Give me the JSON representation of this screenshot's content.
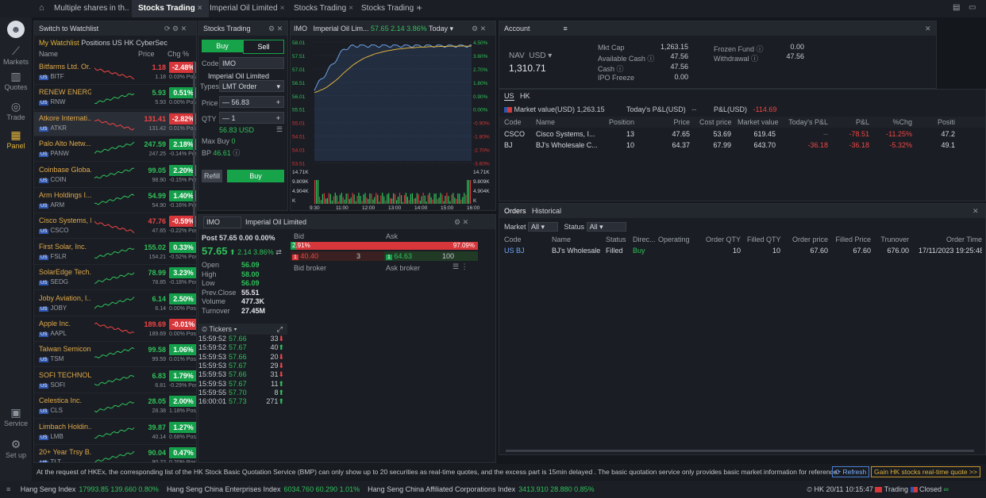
{
  "tabs": [
    {
      "label": "Multiple shares in th..",
      "close": "×"
    },
    {
      "label": "Stocks Trading",
      "close": "×"
    },
    {
      "label": "Imperial Oil Limited",
      "close": "×"
    },
    {
      "label": "Stocks Trading",
      "close": "×"
    },
    {
      "label": "Stocks Trading",
      "close": "×"
    }
  ],
  "add_tab": "+",
  "sidebar": {
    "items": [
      {
        "label": "Markets"
      },
      {
        "label": "Quotes"
      },
      {
        "label": "Trade"
      },
      {
        "label": "Panel"
      },
      {
        "label": "Service"
      },
      {
        "label": "Set up"
      }
    ]
  },
  "watchlist": {
    "title": "Switch to Watchlist",
    "filters": [
      "My Watchlist",
      "Positions",
      "US",
      "HK",
      "CyberSec"
    ],
    "headers": {
      "name": "Name",
      "price": "Price",
      "chg": "Chg %"
    },
    "rows": [
      {
        "name": "Bitfarms Ltd. Or...",
        "sym": "BITF",
        "price": "1.18",
        "chg": "-2.48%",
        "price2": "1.18",
        "post": "0.03% Post",
        "dir": "down"
      },
      {
        "name": "RENEW ENERG...",
        "sym": "RNW",
        "price": "5.93",
        "chg": "0.51%",
        "price2": "5.93",
        "post": "0.00% Post",
        "dir": "up"
      },
      {
        "name": "Atkore Internati...",
        "sym": "ATKR",
        "price": "131.41",
        "chg": "-2.82%",
        "price2": "131.42",
        "post": "0.01% Post",
        "dir": "down"
      },
      {
        "name": "Palo Alto Netw...",
        "sym": "PANW",
        "price": "247.59",
        "chg": "2.18%",
        "price2": "247.25",
        "post": "-0.14% Post",
        "dir": "up"
      },
      {
        "name": "Coinbase Globa...",
        "sym": "COIN",
        "price": "99.05",
        "chg": "2.20%",
        "price2": "98.90",
        "post": "-0.15% Post",
        "dir": "up"
      },
      {
        "name": "Arm Holdings I...",
        "sym": "ARM",
        "price": "54.99",
        "chg": "1.40%",
        "price2": "54.90",
        "post": "-0.16% Post",
        "dir": "up"
      },
      {
        "name": "Cisco Systems, I...",
        "sym": "CSCO",
        "price": "47.76",
        "chg": "-0.59%",
        "price2": "47.65",
        "post": "-0.22% Post",
        "dir": "down"
      },
      {
        "name": "First Solar, Inc.",
        "sym": "FSLR",
        "price": "155.02",
        "chg": "0.33%",
        "price2": "154.21",
        "post": "-0.52% Post",
        "dir": "up"
      },
      {
        "name": "SolarEdge Tech...",
        "sym": "SEDG",
        "price": "78.99",
        "chg": "3.23%",
        "price2": "78.85",
        "post": "-0.18% Post",
        "dir": "up"
      },
      {
        "name": "Joby Aviation, I...",
        "sym": "JOBY",
        "price": "6.14",
        "chg": "2.50%",
        "price2": "6.14",
        "post": "0.00% Post",
        "dir": "up"
      },
      {
        "name": "Apple Inc.",
        "sym": "AAPL",
        "price": "189.69",
        "chg": "-0.01%",
        "price2": "189.69",
        "post": "0.00% Post",
        "dir": "down"
      },
      {
        "name": "Taiwan Semicon...",
        "sym": "TSM",
        "price": "99.58",
        "chg": "1.06%",
        "price2": "99.59",
        "post": "0.01% Post",
        "dir": "up"
      },
      {
        "name": "SOFI TECHNOL...",
        "sym": "SOFI",
        "price": "6.83",
        "chg": "1.79%",
        "price2": "6.81",
        "post": "-0.29% Post",
        "dir": "up"
      },
      {
        "name": "Celestica Inc.",
        "sym": "CLS",
        "price": "28.05",
        "chg": "2.00%",
        "price2": "28.38",
        "post": "1.18% Post",
        "dir": "up"
      },
      {
        "name": "Limbach Holdin...",
        "sym": "LMB",
        "price": "39.87",
        "chg": "1.27%",
        "price2": "40.14",
        "post": "0.68% Post",
        "dir": "up"
      },
      {
        "name": "20+ Year Trsy B...",
        "sym": "TLT",
        "price": "90.04",
        "chg": "0.47%",
        "price2": "90.22",
        "post": "0.20% Post",
        "dir": "up"
      }
    ]
  },
  "trade": {
    "title": "Stocks Trading",
    "buy": "Buy",
    "sell": "Sell",
    "code_label": "Code",
    "code": "IMO",
    "company": "Imperial Oil Limited",
    "type_label": "Types",
    "type": "LMT Order",
    "price_label": "Price",
    "price": "56.83",
    "qty_label": "QTY",
    "qty": "1",
    "amount": "56.83 USD",
    "maxbuy_label": "Max Buy",
    "maxbuy": "0",
    "bp_label": "BP",
    "bp": "46.61",
    "refill": "Refill",
    "buy_btn": "Buy"
  },
  "chart": {
    "code": "IMO",
    "name": "Imperial Oil Lim...",
    "price": "57.65",
    "chg": "2.14",
    "pct": "3.86%",
    "period": "Today",
    "left_ticks": [
      "58.01",
      "57.51",
      "57.01",
      "56.51",
      "56.01",
      "55.51",
      "55.01",
      "54.51",
      "54.01",
      "53.51"
    ],
    "right_ticks": [
      "4.50%",
      "3.60%",
      "2.70%",
      "1.80%",
      "0.90%",
      "0.00%",
      "-0.90%",
      "-1.80%",
      "-2.70%",
      "-3.60%"
    ],
    "vol_left": [
      "14.71K",
      "9.809K",
      "4.904K",
      "K"
    ],
    "vol_right": [
      "14.71K",
      "9.809K",
      "4.904K",
      "K"
    ],
    "times": [
      "9:30",
      "11:00",
      "12:00",
      "13:00",
      "14:00",
      "15:00",
      "16:00"
    ]
  },
  "quote": {
    "code": "IMO",
    "name": "Imperial Oil Limited",
    "post": "Post 57.65 0.00 0.00%",
    "price": "57.65",
    "chg": "2.14",
    "pct": "3.86%",
    "stats": [
      {
        "k": "Open",
        "v": "56.09",
        "c": "green"
      },
      {
        "k": "High",
        "v": "58.00",
        "c": "green"
      },
      {
        "k": "Low",
        "v": "56.09",
        "c": "green"
      },
      {
        "k": "Prev.Close",
        "v": "55.51",
        "c": "white"
      },
      {
        "k": "Volume",
        "v": "477.3K",
        "c": "white"
      },
      {
        "k": "Turnover",
        "v": "27.45M",
        "c": "white"
      }
    ],
    "bid_label": "Bid",
    "ask_label": "Ask",
    "bid_pct": "2.91%",
    "ask_pct": "97.09%",
    "bid_price": "40.40",
    "bid_qty": "3",
    "ask_price": "64.63",
    "ask_qty": "100",
    "bid_broker": "Bid broker",
    "ask_broker": "Ask broker",
    "tickers_label": "Tickers",
    "tickers": [
      {
        "t": "15:59:52",
        "p": "57.66",
        "q": "33",
        "d": "down"
      },
      {
        "t": "15:59:52",
        "p": "57.67",
        "q": "40",
        "d": "up"
      },
      {
        "t": "15:59:53",
        "p": "57.66",
        "q": "20",
        "d": "down"
      },
      {
        "t": "15:59:53",
        "p": "57.67",
        "q": "29",
        "d": "down"
      },
      {
        "t": "15:59:53",
        "p": "57.66",
        "q": "31",
        "d": "down"
      },
      {
        "t": "15:59:53",
        "p": "57.67",
        "q": "11",
        "d": "up"
      },
      {
        "t": "15:59:55",
        "p": "57.70",
        "q": "8",
        "d": "up"
      },
      {
        "t": "16:00:01",
        "p": "57.73",
        "q": "271",
        "d": "up"
      }
    ]
  },
  "account": {
    "title": "Account",
    "nav_label": "NAV",
    "currency": "USD",
    "nav": "1,310.71",
    "mktcap_label": "Mkt Cap",
    "mktcap": "1,263.15",
    "avail_label": "Available Cash",
    "avail": "47.56",
    "cash_label": "Cash",
    "cash": "47.56",
    "ipo_label": "IPO Freeze",
    "ipo": "0.00",
    "frozen_label": "Frozen Fund",
    "frozen": "0.00",
    "withdraw_label": "Withdrawal",
    "withdraw": "47.56"
  },
  "positions": {
    "tabs": [
      "US",
      "HK"
    ],
    "mv_label": "Market value(USD)",
    "mv": "1,263.15",
    "tpl_label": "Today's P&L(USD)",
    "tpl": "--",
    "pl_label": "P&L(USD)",
    "pl": "-114.69",
    "headers": [
      "Code",
      "Name",
      "Position",
      "Price",
      "Cost price",
      "Market value",
      "Today's P&L",
      "P&L",
      "%Chg",
      "Positi"
    ],
    "rows": [
      [
        "CSCO",
        "Cisco Systems, I...",
        "13",
        "47.65",
        "53.69",
        "619.45",
        "--",
        "-78.51",
        "-11.25%",
        "47.2"
      ],
      [
        "BJ",
        "BJ's Wholesale C...",
        "10",
        "64.37",
        "67.99",
        "643.70",
        "-36.18",
        "-36.18",
        "-5.32%",
        "49.1"
      ]
    ]
  },
  "orders": {
    "tabs": [
      "Orders",
      "Historical"
    ],
    "market_label": "Market",
    "market": "All",
    "status_label": "Status",
    "status": "All",
    "headers": [
      "Code",
      "Name",
      "Status",
      "Direc...",
      "Operating",
      "Order QTY",
      "Filled QTY",
      "Order price",
      "Filled Price",
      "Trunover",
      "Order Time"
    ],
    "rows": [
      [
        "US BJ",
        "BJ's Wholesale Clu",
        "Filled",
        "Buy",
        "",
        "10",
        "10",
        "67.60",
        "67.60",
        "676.00",
        "17/11/2023 19:25:48"
      ]
    ]
  },
  "notice": {
    "text": "At the request of HKEx, the corresponding list of the HK Stock Basic Quotation Service (BMP) can only show up to 20 securities as real-time quotes, and the excess part is 15min delayed . The basic quotation service only provides basic market information for reference.",
    "refresh": "Refresh",
    "gain": "Gain HK stocks real-time quote >>"
  },
  "bottom": {
    "indices": [
      {
        "name": "Hang Seng Index",
        "val": "17993.85 139.660 0.80%"
      },
      {
        "name": "Hang Seng China Enterprises Index",
        "val": "6034.760 60.290 1.01%"
      },
      {
        "name": "Hang Seng China Affiliated Corporations Index",
        "val": "3413.910 28.880 0.85%"
      }
    ],
    "clock": "HK 20/11 10:15:47",
    "trading": "Trading",
    "closed": "Closed"
  }
}
